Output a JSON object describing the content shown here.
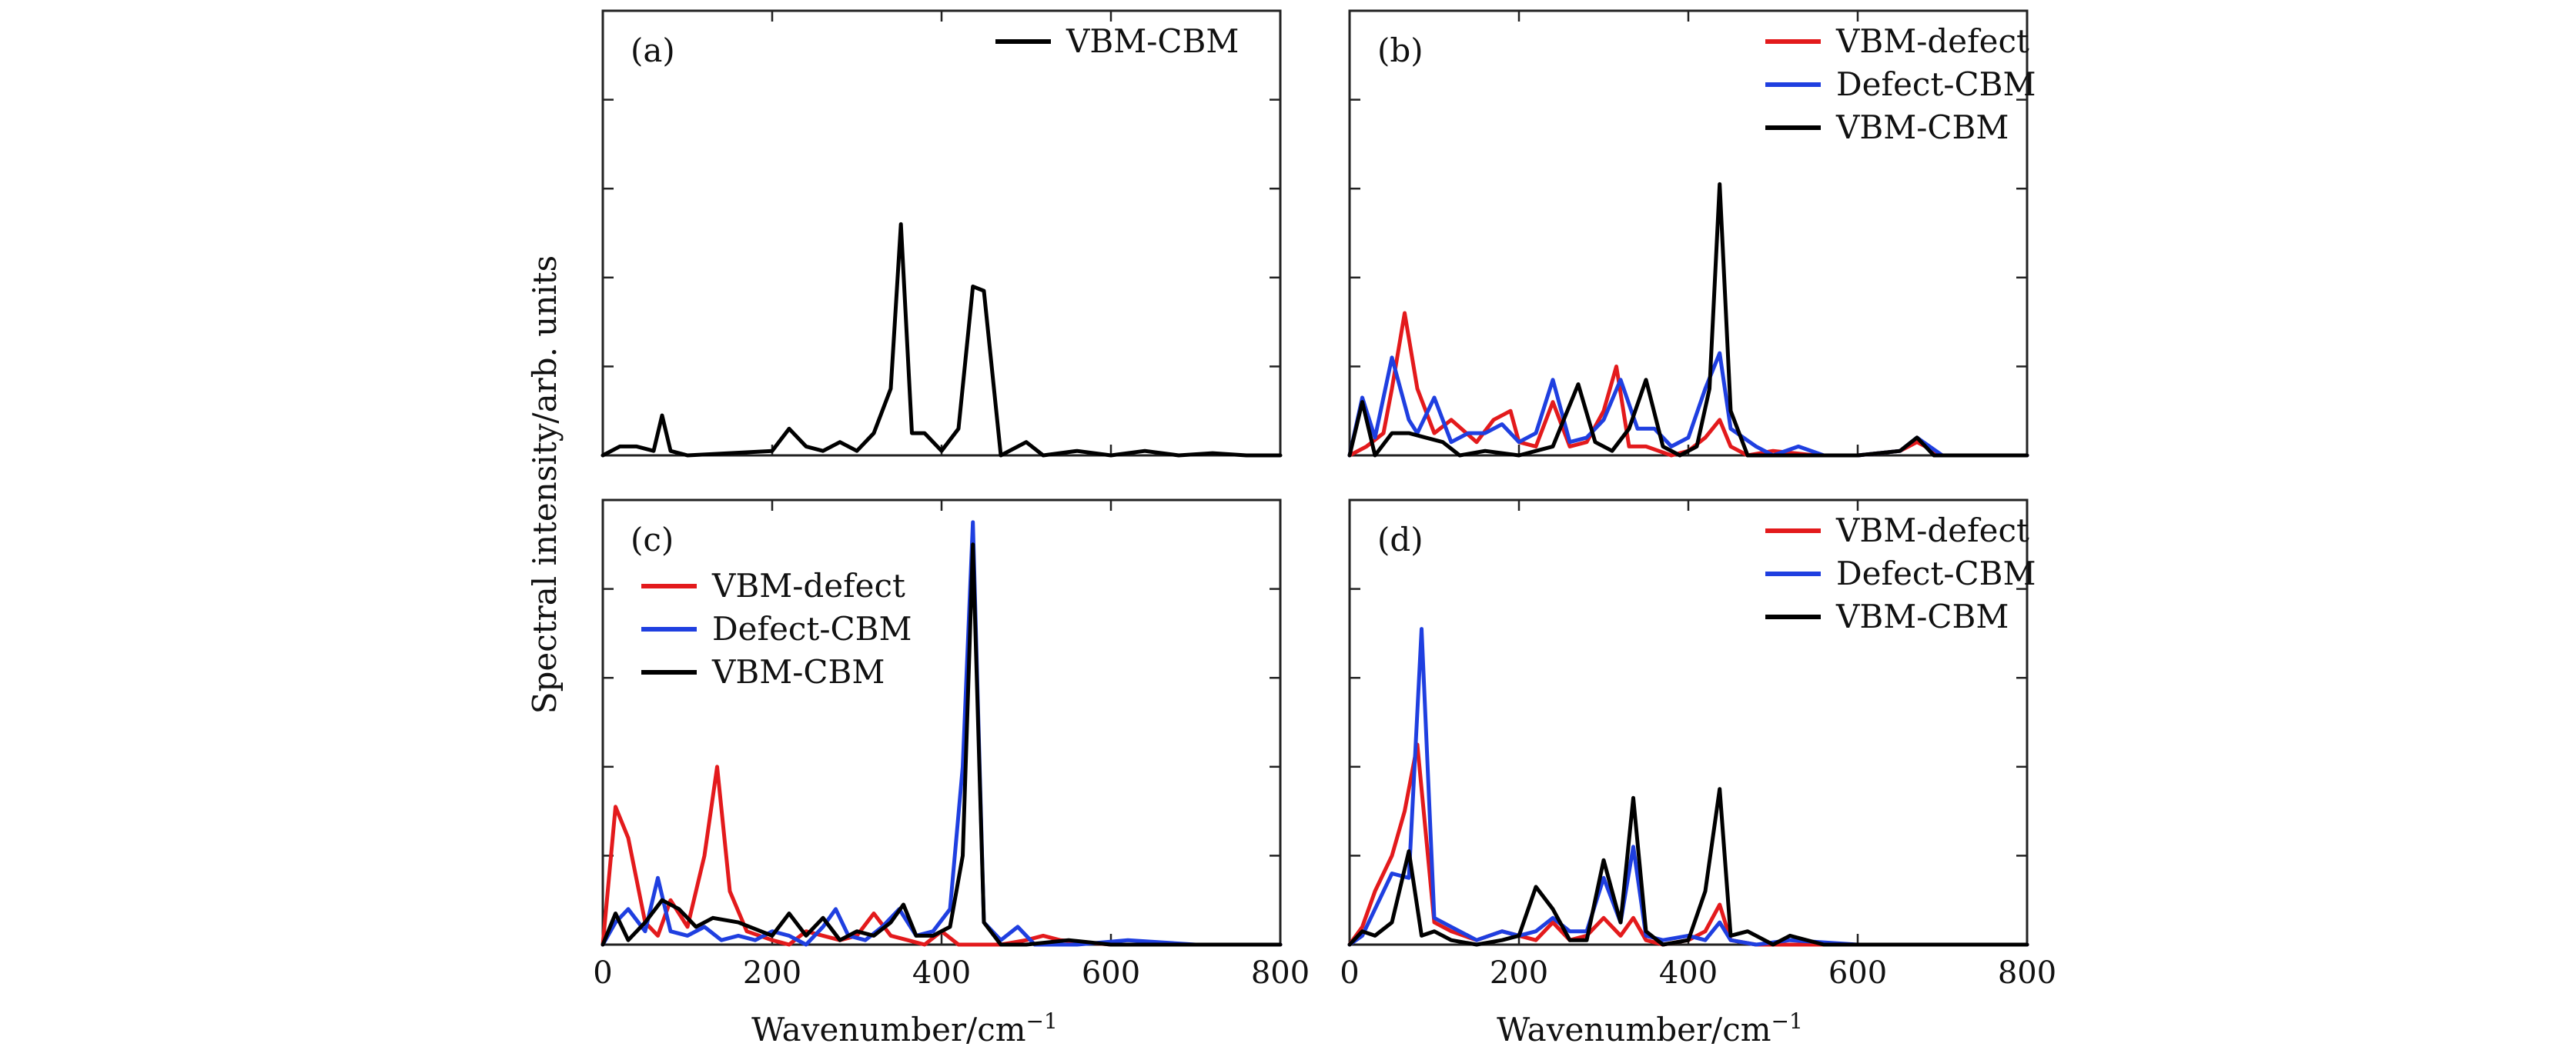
{
  "figure": {
    "ylabel": "Spectral intensity/arb. units",
    "xlabel_text": "Wavenumber/cm",
    "xlabel_exp": "−1"
  },
  "chart_data": [
    {
      "panel": "(a)",
      "type": "line",
      "title": "",
      "xlim": [
        0,
        800
      ],
      "ylim": [
        0,
        1
      ],
      "xticks": [
        0,
        200,
        400,
        600,
        800
      ],
      "xtick_labels": [
        "",
        "",
        "",
        "",
        ""
      ],
      "yticks": [
        0,
        0.2,
        0.4,
        0.6,
        0.8,
        1.0
      ],
      "grid": false,
      "legend": "top-right",
      "series": [
        {
          "name": "VBM-CBM",
          "color": "#000000",
          "x": [
            0,
            20,
            40,
            60,
            70,
            80,
            100,
            150,
            200,
            220,
            240,
            260,
            280,
            300,
            320,
            340,
            352,
            365,
            380,
            400,
            420,
            437,
            450,
            470,
            500,
            520,
            560,
            600,
            640,
            680,
            720,
            760,
            800
          ],
          "y": [
            0.0,
            0.02,
            0.02,
            0.01,
            0.09,
            0.01,
            0.0,
            0.005,
            0.01,
            0.06,
            0.02,
            0.01,
            0.03,
            0.01,
            0.05,
            0.15,
            0.52,
            0.05,
            0.05,
            0.01,
            0.06,
            0.38,
            0.37,
            0.0,
            0.03,
            0.0,
            0.01,
            0.0,
            0.01,
            0.0,
            0.005,
            0.0,
            0.0
          ]
        }
      ]
    },
    {
      "panel": "(b)",
      "type": "line",
      "title": "",
      "xlim": [
        0,
        800
      ],
      "ylim": [
        0,
        1
      ],
      "xticks": [
        0,
        200,
        400,
        600,
        800
      ],
      "xtick_labels": [
        "",
        "",
        "",
        "",
        ""
      ],
      "yticks": [
        0,
        0.2,
        0.4,
        0.6,
        0.8,
        1.0
      ],
      "grid": false,
      "legend": "top-right",
      "series": [
        {
          "name": "VBM-defect",
          "color": "#e31a1c",
          "x": [
            0,
            20,
            40,
            50,
            65,
            80,
            100,
            120,
            150,
            170,
            190,
            200,
            220,
            240,
            260,
            280,
            300,
            315,
            330,
            350,
            380,
            400,
            420,
            437,
            450,
            470,
            500,
            550,
            600,
            650,
            670,
            700,
            750,
            800
          ],
          "y": [
            0.0,
            0.02,
            0.05,
            0.15,
            0.32,
            0.15,
            0.05,
            0.08,
            0.03,
            0.08,
            0.1,
            0.03,
            0.02,
            0.12,
            0.02,
            0.03,
            0.1,
            0.2,
            0.02,
            0.02,
            0.0,
            0.01,
            0.04,
            0.08,
            0.02,
            0.0,
            0.01,
            0.0,
            0.0,
            0.01,
            0.03,
            0.0,
            0.0,
            0.0
          ]
        },
        {
          "name": "Defect-CBM",
          "color": "#1f3fe0",
          "x": [
            0,
            15,
            30,
            50,
            70,
            80,
            100,
            120,
            140,
            160,
            180,
            200,
            220,
            240,
            260,
            280,
            300,
            320,
            340,
            360,
            380,
            400,
            420,
            437,
            450,
            480,
            500,
            530,
            560,
            600,
            650,
            670,
            700,
            750,
            800
          ],
          "y": [
            0.0,
            0.13,
            0.04,
            0.22,
            0.08,
            0.05,
            0.13,
            0.03,
            0.05,
            0.05,
            0.07,
            0.03,
            0.05,
            0.17,
            0.03,
            0.04,
            0.08,
            0.17,
            0.06,
            0.06,
            0.02,
            0.04,
            0.15,
            0.23,
            0.06,
            0.02,
            0.0,
            0.02,
            0.0,
            0.0,
            0.01,
            0.04,
            0.0,
            0.0,
            0.0
          ]
        },
        {
          "name": "VBM-CBM",
          "color": "#000000",
          "x": [
            0,
            15,
            30,
            50,
            70,
            90,
            110,
            130,
            160,
            200,
            240,
            270,
            290,
            310,
            330,
            350,
            370,
            390,
            410,
            425,
            437,
            450,
            470,
            500,
            550,
            600,
            650,
            670,
            690,
            750,
            800
          ],
          "y": [
            0.0,
            0.12,
            0.0,
            0.05,
            0.05,
            0.04,
            0.03,
            0.0,
            0.01,
            0.0,
            0.02,
            0.16,
            0.03,
            0.01,
            0.06,
            0.17,
            0.02,
            0.0,
            0.02,
            0.15,
            0.61,
            0.1,
            0.0,
            0.0,
            0.0,
            0.0,
            0.01,
            0.04,
            0.0,
            0.0,
            0.0
          ]
        }
      ]
    },
    {
      "panel": "(c)",
      "type": "line",
      "title": "",
      "xlim": [
        0,
        800
      ],
      "ylim": [
        0,
        1
      ],
      "xticks": [
        0,
        200,
        400,
        600,
        800
      ],
      "xtick_labels": [
        "0",
        "200",
        "400",
        "600",
        "800"
      ],
      "yticks": [
        0,
        0.2,
        0.4,
        0.6,
        0.8,
        1.0
      ],
      "grid": false,
      "legend": "upper-left",
      "series": [
        {
          "name": "VBM-defect",
          "color": "#e31a1c",
          "x": [
            0,
            15,
            30,
            50,
            65,
            80,
            100,
            120,
            135,
            150,
            170,
            200,
            220,
            240,
            260,
            280,
            300,
            320,
            340,
            360,
            380,
            400,
            420,
            437,
            450,
            470,
            500,
            520,
            540,
            600,
            700,
            800
          ],
          "y": [
            0.0,
            0.31,
            0.24,
            0.05,
            0.02,
            0.1,
            0.04,
            0.2,
            0.4,
            0.12,
            0.03,
            0.01,
            0.0,
            0.03,
            0.02,
            0.01,
            0.02,
            0.07,
            0.02,
            0.01,
            0.0,
            0.03,
            0.0,
            0.0,
            0.0,
            0.0,
            0.01,
            0.02,
            0.01,
            0.0,
            0.0,
            0.0
          ]
        },
        {
          "name": "Defect-CBM",
          "color": "#1f3fe0",
          "x": [
            0,
            15,
            30,
            50,
            65,
            80,
            100,
            120,
            140,
            160,
            180,
            200,
            220,
            240,
            260,
            275,
            290,
            310,
            330,
            350,
            370,
            390,
            410,
            425,
            437,
            450,
            470,
            490,
            510,
            560,
            620,
            700,
            800
          ],
          "y": [
            0.0,
            0.05,
            0.08,
            0.03,
            0.15,
            0.03,
            0.02,
            0.04,
            0.01,
            0.02,
            0.01,
            0.03,
            0.02,
            0.0,
            0.04,
            0.08,
            0.02,
            0.01,
            0.04,
            0.08,
            0.02,
            0.03,
            0.08,
            0.4,
            0.95,
            0.05,
            0.01,
            0.04,
            0.0,
            0.0,
            0.01,
            0.0,
            0.0
          ]
        },
        {
          "name": "VBM-CBM",
          "color": "#000000",
          "x": [
            0,
            15,
            30,
            50,
            70,
            90,
            110,
            130,
            160,
            200,
            220,
            240,
            260,
            280,
            300,
            320,
            340,
            355,
            370,
            390,
            410,
            425,
            437,
            450,
            470,
            500,
            550,
            600,
            700,
            800
          ],
          "y": [
            0.0,
            0.07,
            0.01,
            0.05,
            0.1,
            0.08,
            0.04,
            0.06,
            0.05,
            0.02,
            0.07,
            0.02,
            0.06,
            0.01,
            0.03,
            0.02,
            0.05,
            0.09,
            0.02,
            0.02,
            0.04,
            0.2,
            0.9,
            0.05,
            0.0,
            0.0,
            0.01,
            0.0,
            0.0,
            0.0
          ]
        }
      ]
    },
    {
      "panel": "(d)",
      "type": "line",
      "title": "",
      "xlim": [
        0,
        800
      ],
      "ylim": [
        0,
        1
      ],
      "xticks": [
        0,
        200,
        400,
        600,
        800
      ],
      "xtick_labels": [
        "0",
        "200",
        "400",
        "600",
        "800"
      ],
      "yticks": [
        0,
        0.2,
        0.4,
        0.6,
        0.8,
        1.0
      ],
      "grid": false,
      "legend": "top-right",
      "series": [
        {
          "name": "VBM-defect",
          "color": "#e31a1c",
          "x": [
            0,
            15,
            30,
            50,
            65,
            80,
            100,
            120,
            150,
            180,
            200,
            220,
            240,
            260,
            280,
            300,
            320,
            335,
            350,
            370,
            400,
            420,
            437,
            450,
            480,
            520,
            600,
            700,
            800
          ],
          "y": [
            0.0,
            0.04,
            0.12,
            0.2,
            0.3,
            0.45,
            0.05,
            0.03,
            0.01,
            0.03,
            0.02,
            0.01,
            0.05,
            0.01,
            0.02,
            0.06,
            0.02,
            0.06,
            0.01,
            0.0,
            0.01,
            0.03,
            0.09,
            0.01,
            0.0,
            0.0,
            0.0,
            0.0,
            0.0
          ]
        },
        {
          "name": "Defect-CBM",
          "color": "#1f3fe0",
          "x": [
            0,
            15,
            30,
            50,
            70,
            85,
            100,
            120,
            150,
            180,
            200,
            220,
            240,
            260,
            280,
            300,
            320,
            335,
            350,
            370,
            400,
            420,
            437,
            450,
            480,
            520,
            600,
            700,
            800
          ],
          "y": [
            0.0,
            0.02,
            0.08,
            0.16,
            0.15,
            0.71,
            0.06,
            0.04,
            0.01,
            0.03,
            0.02,
            0.03,
            0.06,
            0.03,
            0.03,
            0.15,
            0.05,
            0.22,
            0.02,
            0.01,
            0.02,
            0.01,
            0.05,
            0.01,
            0.0,
            0.01,
            0.0,
            0.0,
            0.0
          ]
        },
        {
          "name": "VBM-CBM",
          "color": "#000000",
          "x": [
            0,
            15,
            30,
            50,
            70,
            85,
            100,
            120,
            150,
            180,
            200,
            220,
            240,
            260,
            280,
            300,
            320,
            335,
            350,
            370,
            400,
            420,
            437,
            450,
            470,
            500,
            520,
            560,
            600,
            700,
            800
          ],
          "y": [
            0.0,
            0.03,
            0.02,
            0.05,
            0.21,
            0.02,
            0.03,
            0.01,
            0.0,
            0.01,
            0.02,
            0.13,
            0.08,
            0.01,
            0.01,
            0.19,
            0.05,
            0.33,
            0.03,
            0.0,
            0.01,
            0.12,
            0.35,
            0.02,
            0.03,
            0.0,
            0.02,
            0.0,
            0.0,
            0.0,
            0.0
          ]
        }
      ]
    }
  ]
}
